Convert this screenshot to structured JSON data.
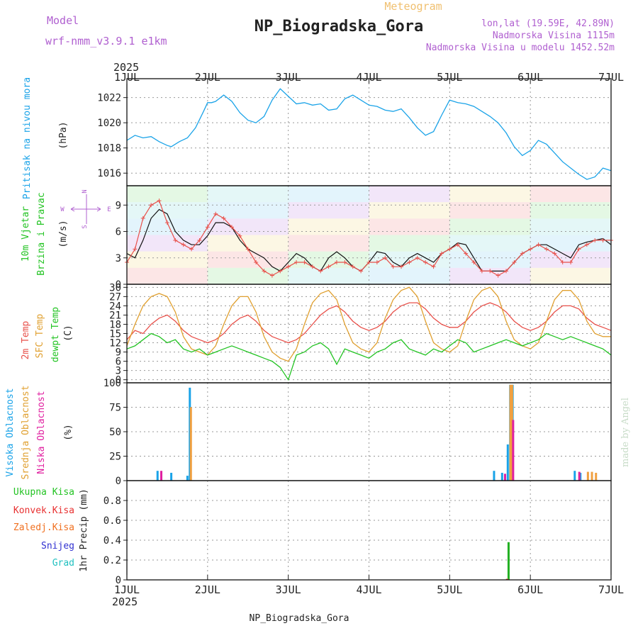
{
  "header": {
    "model_label": "Model",
    "model_name": "wrf-nmm_v3.9.1 e1km",
    "meteogram_label": "Meteogram",
    "station_title": "NP_Biogradska_Gora",
    "coords": "lon,lat (19.59E, 42.89N)",
    "elevation": "Nadmorska Visina 1115m",
    "model_elevation": "Nadmorska Visina u modelu 1452.52m",
    "year_top": "2025",
    "year_bottom": "2025",
    "footer_station": "NP_Biogradska_Gora",
    "credit": "made by Angel"
  },
  "colors": {
    "pressure": "#1aa3e8",
    "temp2m": "#e8504a",
    "sfc": "#e0a030",
    "dewpt": "#22c322",
    "high_cloud": "#1aa3e8",
    "mid_cloud": "#f0a040",
    "low_cloud": "#e020a0",
    "purple_text": "#b060d0",
    "total_precip": "#22b022",
    "conv_precip": "#e83030",
    "snow": "#3030d0",
    "graupel": "#20c0c0",
    "frozen": "#f07020"
  },
  "days": [
    "1JUL",
    "2JUL",
    "3JUL",
    "4JUL",
    "5JUL",
    "6JUL",
    "7JUL"
  ],
  "panels": {
    "pressure": {
      "ylabel": "Pritisak na nivou mora",
      "unit": "(hPa)"
    },
    "wind": {
      "ylabel1": "10m Vjetar",
      "ylabel2": "Brzina i Pravac",
      "unit": "(m/s)",
      "compass": {
        "n": "N",
        "s": "S",
        "e": "E",
        "w": "W"
      }
    },
    "temp": {
      "ylabel1": "2m Temp",
      "ylabel2": "SFC Temp",
      "ylabel3": "dewpt Temp",
      "unit": "(C)"
    },
    "cloud": {
      "ylabel1": "Visoka Oblacnost",
      "ylabel2": "Srednja Oblacnost",
      "ylabel3": "Niska Oblacnost",
      "unit": "(%)"
    },
    "precip": {
      "legend": [
        "Ukupna Kisa",
        "Konvek.Kisa",
        "Zaledj.Kisa",
        "Snijeg",
        "Grad"
      ],
      "unit": "1hr Precip (mm)"
    }
  },
  "chart_data": [
    {
      "type": "line",
      "title": "Pritisak na nivou mora",
      "ylabel": "(hPa)",
      "ylim": [
        1015,
        1023.5
      ],
      "yticks": [
        1016,
        1018,
        1020,
        1022
      ],
      "x_unit": "day offset from 1 JUL 2025 00UTC",
      "xlim": [
        0,
        6
      ],
      "grid": true,
      "series": [
        {
          "x": [
            0,
            0.1,
            0.2,
            0.3,
            0.4,
            0.5,
            0.55,
            0.65,
            0.75,
            0.85,
            0.95,
            1.0,
            1.05,
            1.1,
            1.2,
            1.3,
            1.4,
            1.5,
            1.6,
            1.7,
            1.8,
            1.9,
            2.0,
            2.1,
            2.2,
            2.3,
            2.4,
            2.5,
            2.6,
            2.7,
            2.8,
            2.9,
            3.0,
            3.1,
            3.2,
            3.3,
            3.4,
            3.5,
            3.6,
            3.7,
            3.8,
            3.9,
            4.0,
            4.1,
            4.2,
            4.3,
            4.4,
            4.5,
            4.6,
            4.7,
            4.8,
            4.9,
            5.0,
            5.1,
            5.2,
            5.3,
            5.4,
            5.5,
            5.6,
            5.7,
            5.8,
            5.9,
            6.0
          ],
          "y": [
            1018.6,
            1019.0,
            1018.8,
            1018.9,
            1018.5,
            1018.2,
            1018.1,
            1018.5,
            1018.8,
            1019.6,
            1020.9,
            1021.6,
            1021.6,
            1021.7,
            1022.2,
            1021.7,
            1020.8,
            1020.2,
            1020.0,
            1020.5,
            1021.8,
            1022.7,
            1022.1,
            1021.5,
            1021.6,
            1021.4,
            1021.5,
            1021.0,
            1021.1,
            1021.9,
            1022.2,
            1021.8,
            1021.4,
            1021.3,
            1021.0,
            1020.9,
            1021.1,
            1020.4,
            1019.6,
            1019.0,
            1019.3,
            1020.6,
            1021.8,
            1021.6,
            1021.5,
            1021.3,
            1020.9,
            1020.5,
            1020.0,
            1019.2,
            1018.1,
            1017.4,
            1017.8,
            1018.6,
            1018.3,
            1017.6,
            1016.9,
            1016.4,
            1015.9,
            1015.5,
            1015.7,
            1016.4,
            1016.2
          ]
        }
      ]
    },
    {
      "type": "line",
      "title": "10m Vjetar Brzina i Pravac",
      "ylabel": "(m/s)",
      "ylim": [
        0,
        11.2
      ],
      "yticks": [
        0,
        3,
        6,
        9
      ],
      "x_unit": "day offset from 1 JUL 2025 00UTC",
      "xlim": [
        0,
        6
      ],
      "grid": true,
      "series": [
        {
          "name": "speed",
          "x": [
            0,
            0.1,
            0.2,
            0.3,
            0.4,
            0.5,
            0.6,
            0.7,
            0.8,
            0.9,
            1.0,
            1.1,
            1.2,
            1.3,
            1.4,
            1.5,
            1.6,
            1.7,
            1.8,
            1.9,
            2.0,
            2.1,
            2.2,
            2.3,
            2.4,
            2.5,
            2.6,
            2.7,
            2.8,
            2.9,
            3.0,
            3.1,
            3.2,
            3.3,
            3.4,
            3.5,
            3.6,
            3.7,
            3.8,
            3.9,
            4.0,
            4.1,
            4.2,
            4.3,
            4.4,
            4.5,
            4.6,
            4.7,
            4.8,
            4.9,
            5.0,
            5.1,
            5.2,
            5.3,
            5.4,
            5.5,
            5.6,
            5.7,
            5.8,
            5.9,
            6.0
          ],
          "y": [
            3.5,
            3.0,
            5.0,
            7.5,
            8.5,
            8.0,
            6.0,
            5.0,
            4.5,
            4.5,
            5.5,
            7.0,
            7.0,
            6.5,
            5.0,
            4.0,
            3.5,
            3.0,
            2.0,
            1.5,
            2.5,
            3.5,
            3.0,
            2.0,
            1.5,
            3.0,
            3.7,
            3.0,
            2.0,
            1.5,
            2.5,
            3.7,
            3.5,
            2.5,
            2.0,
            3.0,
            3.5,
            3.0,
            2.5,
            3.5,
            4.0,
            4.7,
            4.5,
            3.0,
            1.5,
            1.5,
            1.5,
            1.5,
            2.5,
            3.5,
            4.0,
            4.5,
            4.5,
            4.0,
            3.5,
            3.0,
            4.5,
            4.8,
            5.0,
            5.2,
            4.5
          ]
        },
        {
          "name": "gust",
          "x": [
            0,
            0.1,
            0.2,
            0.3,
            0.4,
            0.5,
            0.6,
            0.7,
            0.8,
            0.9,
            1.0,
            1.1,
            1.2,
            1.3,
            1.4,
            1.5,
            1.6,
            1.7,
            1.8,
            1.9,
            2.0,
            2.1,
            2.2,
            2.3,
            2.4,
            2.5,
            2.6,
            2.7,
            2.8,
            2.9,
            3.0,
            3.1,
            3.2,
            3.3,
            3.4,
            3.5,
            3.6,
            3.7,
            3.8,
            3.9,
            4.0,
            4.1,
            4.2,
            4.3,
            4.4,
            4.5,
            4.6,
            4.7,
            4.8,
            4.9,
            5.0,
            5.1,
            5.2,
            5.3,
            5.4,
            5.5,
            5.6,
            5.7,
            5.8,
            5.9,
            6.0
          ],
          "y": [
            2.5,
            4.0,
            7.5,
            9.0,
            9.5,
            7.0,
            5.0,
            4.5,
            4.0,
            5.0,
            6.5,
            8.0,
            7.5,
            6.5,
            5.5,
            4.0,
            2.5,
            1.5,
            1.0,
            1.5,
            2.0,
            2.5,
            2.5,
            2.0,
            1.5,
            2.0,
            2.5,
            2.5,
            2.0,
            1.5,
            2.5,
            2.5,
            3.0,
            2.0,
            2.0,
            2.5,
            3.0,
            2.5,
            2.0,
            3.5,
            4.0,
            4.5,
            3.5,
            2.5,
            1.5,
            1.5,
            1.0,
            1.5,
            2.5,
            3.5,
            4.0,
            4.5,
            4.0,
            3.5,
            2.5,
            2.5,
            4.0,
            4.5,
            5.0,
            5.0,
            5.0
          ]
        }
      ]
    },
    {
      "type": "line",
      "title": "Temperature",
      "ylabel": "(C)",
      "ylim": [
        -1,
        31
      ],
      "yticks": [
        0,
        3,
        6,
        9,
        12,
        15,
        18,
        21,
        24,
        27,
        30
      ],
      "x_unit": "day offset from 1 JUL 2025 00UTC",
      "xlim": [
        0,
        6
      ],
      "grid": true,
      "series": [
        {
          "name": "2m Temp",
          "x": [
            0,
            0.1,
            0.2,
            0.3,
            0.4,
            0.5,
            0.6,
            0.7,
            0.8,
            0.9,
            1.0,
            1.1,
            1.2,
            1.3,
            1.4,
            1.5,
            1.6,
            1.7,
            1.8,
            1.9,
            2.0,
            2.1,
            2.2,
            2.3,
            2.4,
            2.5,
            2.6,
            2.7,
            2.8,
            2.9,
            3.0,
            3.1,
            3.2,
            3.3,
            3.4,
            3.5,
            3.6,
            3.7,
            3.8,
            3.9,
            4.0,
            4.1,
            4.2,
            4.3,
            4.4,
            4.5,
            4.6,
            4.7,
            4.8,
            4.9,
            5.0,
            5.1,
            5.2,
            5.3,
            5.4,
            5.5,
            5.6,
            5.7,
            5.8,
            5.9,
            6.0
          ],
          "y": [
            13,
            16,
            15,
            18,
            20,
            21,
            19,
            16,
            14,
            13,
            12,
            13,
            15,
            18,
            20,
            21,
            19,
            16,
            14,
            13,
            12,
            13,
            15,
            18,
            21,
            23,
            24,
            22,
            19,
            17,
            16,
            17,
            19,
            22,
            24,
            25,
            25,
            23,
            20,
            18,
            17,
            17,
            19,
            22,
            24,
            25,
            24,
            22,
            19,
            17,
            16,
            17,
            19,
            22,
            24,
            24,
            23,
            20,
            18,
            17,
            16
          ]
        },
        {
          "name": "SFC Temp",
          "x": [
            0,
            0.1,
            0.2,
            0.3,
            0.4,
            0.5,
            0.6,
            0.7,
            0.8,
            0.9,
            1.0,
            1.1,
            1.2,
            1.3,
            1.4,
            1.5,
            1.6,
            1.7,
            1.8,
            1.9,
            2.0,
            2.1,
            2.2,
            2.3,
            2.4,
            2.5,
            2.6,
            2.7,
            2.8,
            2.9,
            3.0,
            3.1,
            3.2,
            3.3,
            3.4,
            3.5,
            3.6,
            3.7,
            3.8,
            3.9,
            4.0,
            4.1,
            4.2,
            4.3,
            4.4,
            4.5,
            4.6,
            4.7,
            4.8,
            4.9,
            5.0,
            5.1,
            5.2,
            5.3,
            5.4,
            5.5,
            5.6,
            5.7,
            5.8,
            5.9,
            6.0
          ],
          "y": [
            11,
            18,
            24,
            27,
            28,
            27,
            22,
            14,
            10,
            9,
            8,
            11,
            18,
            24,
            27,
            27,
            22,
            14,
            9,
            7,
            6,
            10,
            18,
            25,
            28,
            29,
            26,
            18,
            12,
            10,
            9,
            12,
            20,
            26,
            29,
            30,
            27,
            19,
            12,
            10,
            9,
            11,
            19,
            26,
            29,
            30,
            27,
            19,
            13,
            11,
            10,
            12,
            19,
            26,
            29,
            29,
            26,
            19,
            15,
            14,
            14
          ]
        },
        {
          "name": "dewpt Temp",
          "x": [
            0,
            0.1,
            0.2,
            0.3,
            0.4,
            0.5,
            0.6,
            0.7,
            0.8,
            0.9,
            1.0,
            1.1,
            1.2,
            1.3,
            1.4,
            1.5,
            1.6,
            1.7,
            1.8,
            1.9,
            2.0,
            2.1,
            2.2,
            2.3,
            2.4,
            2.5,
            2.6,
            2.7,
            2.8,
            2.9,
            3.0,
            3.1,
            3.2,
            3.3,
            3.4,
            3.5,
            3.6,
            3.7,
            3.8,
            3.9,
            4.0,
            4.1,
            4.2,
            4.3,
            4.4,
            4.5,
            4.6,
            4.7,
            4.8,
            4.9,
            5.0,
            5.1,
            5.2,
            5.3,
            5.4,
            5.5,
            5.6,
            5.7,
            5.8,
            5.9,
            6.0
          ],
          "y": [
            10,
            11,
            13,
            15,
            14,
            12,
            13,
            10,
            9,
            10,
            8,
            9,
            10,
            11,
            10,
            9,
            8,
            7,
            6,
            4,
            0,
            8,
            9,
            11,
            12,
            10,
            5,
            10,
            9,
            8,
            7,
            9,
            10,
            12,
            13,
            10,
            9,
            8,
            10,
            9,
            11,
            13,
            12,
            9,
            10,
            11,
            12,
            13,
            12,
            11,
            12,
            13,
            15,
            14,
            13,
            14,
            13,
            12,
            11,
            10,
            8
          ]
        }
      ]
    },
    {
      "type": "bar",
      "title": "Oblacnost",
      "ylabel": "(%)",
      "ylim": [
        0,
        100
      ],
      "yticks": [
        0,
        25,
        50,
        75,
        100
      ],
      "x_unit": "day offset from 1 JUL 2025 00UTC",
      "xlim": [
        0,
        6
      ],
      "grid": true,
      "series": [
        {
          "name": "Visoka Oblacnost",
          "x": [
            0.38,
            0.55,
            0.75,
            0.78,
            4.55,
            4.65,
            4.72,
            4.75,
            4.78,
            5.55,
            5.62
          ],
          "values": [
            10,
            8,
            5,
            95,
            10,
            8,
            37,
            98,
            98,
            10,
            8
          ]
        },
        {
          "name": "Srednja Oblacnost",
          "x": [
            0.78,
            4.74,
            4.76,
            5.7,
            5.75,
            5.8
          ],
          "values": [
            75,
            98,
            98,
            9,
            9,
            8
          ]
        },
        {
          "name": "Niska Oblacnost",
          "x": [
            0.4,
            4.76,
            4.66,
            5.58
          ],
          "values": [
            10,
            62,
            7,
            9
          ]
        }
      ]
    },
    {
      "type": "bar",
      "title": "Padavine",
      "ylabel": "1hr Precip (mm)",
      "ylim": [
        0,
        1
      ],
      "yticks": [
        0,
        0.2,
        0.4,
        0.6,
        0.8
      ],
      "x_unit": "day offset from 1 JUL 2025 00UTC",
      "xlim": [
        0,
        6
      ],
      "grid": true,
      "series": [
        {
          "name": "Ukupna Kisa",
          "x": [
            4.73,
            4.71
          ],
          "values": [
            0.38,
            0.01
          ]
        },
        {
          "name": "Konvek.Kisa",
          "x": [
            4.7
          ],
          "values": [
            0.01
          ]
        }
      ]
    }
  ]
}
